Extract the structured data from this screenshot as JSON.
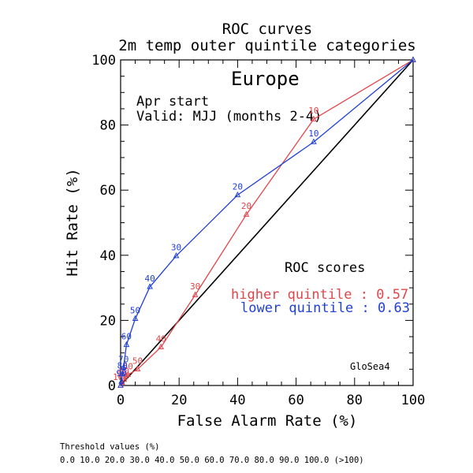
{
  "chart_data": {
    "type": "line",
    "title": "ROC curves",
    "subtitle": "2m temp outer quintile categories",
    "region": "Europe",
    "start_label": "Apr start",
    "valid_label": "Valid: MJJ (months 2-4)",
    "xlabel": "False Alarm Rate (%)",
    "ylabel": "Hit Rate (%)",
    "xlim": [
      0,
      100
    ],
    "ylim": [
      0,
      100
    ],
    "xticks": [
      "0",
      "20",
      "40",
      "60",
      "80",
      "100"
    ],
    "yticks": [
      "0",
      "20",
      "40",
      "60",
      "80",
      "100"
    ],
    "grid": false,
    "scores_title": "ROC scores",
    "model_label": "GloSea4",
    "series": [
      {
        "name": "higher quintile",
        "score_text": "higher quintile : 0.57",
        "color": "#e0454a",
        "points": [
          {
            "x": 0.0,
            "y": 0.0,
            "label": "100"
          },
          {
            "x": 0.5,
            "y": 0.9,
            "label": "90"
          },
          {
            "x": 1.2,
            "y": 1.8,
            "label": "80"
          },
          {
            "x": 2.5,
            "y": 3.3,
            "label": "60"
          },
          {
            "x": 5.8,
            "y": 5.0,
            "label": "50"
          },
          {
            "x": 13.8,
            "y": 11.8,
            "label": "40"
          },
          {
            "x": 25.5,
            "y": 27.8,
            "label": "30"
          },
          {
            "x": 43.0,
            "y": 52.5,
            "label": "20"
          },
          {
            "x": 66.0,
            "y": 81.8,
            "label": "10"
          },
          {
            "x": 100.0,
            "y": 100.0,
            "label": ""
          }
        ]
      },
      {
        "name": "lower quintile",
        "score_text": "lower quintile : 0.63",
        "color": "#1f3fd6",
        "points": [
          {
            "x": 0.0,
            "y": 0.0,
            "label": ""
          },
          {
            "x": 0.3,
            "y": 1.2,
            "label": "90"
          },
          {
            "x": 0.6,
            "y": 3.5,
            "label": "80"
          },
          {
            "x": 1.0,
            "y": 5.5,
            "label": "70"
          },
          {
            "x": 2.0,
            "y": 12.5,
            "label": "60"
          },
          {
            "x": 5.0,
            "y": 20.5,
            "label": "50"
          },
          {
            "x": 10.0,
            "y": 30.3,
            "label": "40"
          },
          {
            "x": 19.0,
            "y": 39.8,
            "label": "30"
          },
          {
            "x": 40.0,
            "y": 58.5,
            "label": "20"
          },
          {
            "x": 66.0,
            "y": 74.8,
            "label": "10"
          },
          {
            "x": 100.0,
            "y": 100.0,
            "label": ""
          }
        ]
      }
    ]
  },
  "footer": {
    "threshold_title": "Threshold values (%)",
    "threshold_values": "0.0 10.0 20.0 30.0 40.0 50.0 60.0 70.0 80.0 90.0 100.0 (>100)"
  }
}
